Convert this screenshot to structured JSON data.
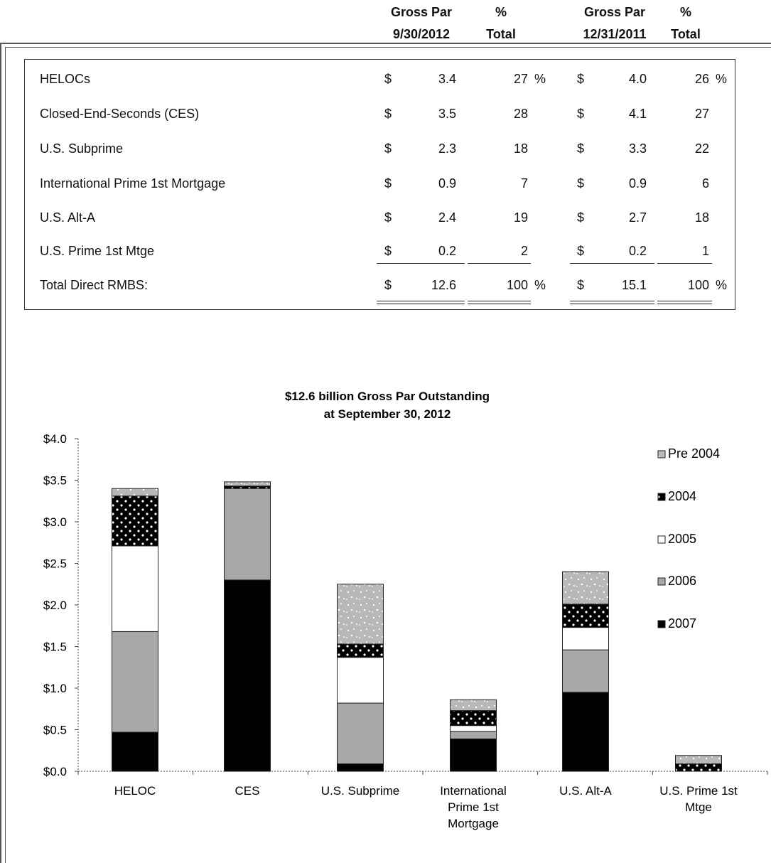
{
  "table": {
    "headers": [
      {
        "line1": "Gross Par",
        "line2": "9/30/2012"
      },
      {
        "line1": "%",
        "line2": "Total"
      },
      {
        "line1": "Gross Par",
        "line2": "12/31/2011"
      },
      {
        "line1": "%",
        "line2": "Total"
      }
    ],
    "rows": [
      {
        "label": "HELOCs",
        "cur1": "$",
        "par1": "3.4",
        "pct1": "27",
        "pctsign1": "%",
        "cur2": "$",
        "par2": "4.0",
        "pct2": "26",
        "pctsign2": "%"
      },
      {
        "label": "Closed-End-Seconds (CES)",
        "cur1": "$",
        "par1": "3.5",
        "pct1": "28",
        "pctsign1": "",
        "cur2": "$",
        "par2": "4.1",
        "pct2": "27",
        "pctsign2": ""
      },
      {
        "label": "U.S. Subprime",
        "cur1": "$",
        "par1": "2.3",
        "pct1": "18",
        "pctsign1": "",
        "cur2": "$",
        "par2": "3.3",
        "pct2": "22",
        "pctsign2": ""
      },
      {
        "label": "International Prime 1st Mortgage",
        "cur1": "$",
        "par1": "0.9",
        "pct1": "7",
        "pctsign1": "",
        "cur2": "$",
        "par2": "0.9",
        "pct2": "6",
        "pctsign2": ""
      },
      {
        "label": "U.S.  Alt-A",
        "cur1": "$",
        "par1": "2.4",
        "pct1": "19",
        "pctsign1": "",
        "cur2": "$",
        "par2": "2.7",
        "pct2": "18",
        "pctsign2": ""
      },
      {
        "label": "U.S. Prime 1st Mtge",
        "cur1": "$",
        "par1": "0.2",
        "pct1": "2",
        "pctsign1": "",
        "cur2": "$",
        "par2": "0.2",
        "pct2": "1",
        "pctsign2": ""
      }
    ],
    "total": {
      "label": "Total Direct RMBS:",
      "cur1": "$",
      "par1": "12.6",
      "pct1": "100",
      "pctsign1": "%",
      "cur2": "$",
      "par2": "15.1",
      "pct2": "100",
      "pctsign2": "%"
    }
  },
  "chart_data": {
    "type": "bar",
    "stacked": true,
    "title": [
      "$12.6 billion Gross Par Outstanding",
      "at September 30, 2012"
    ],
    "categories": [
      [
        "HELOC"
      ],
      [
        "CES"
      ],
      [
        "U.S. Subprime"
      ],
      [
        "International",
        "Prime 1st",
        "Mortgage"
      ],
      [
        "U.S.  Alt-A"
      ],
      [
        "U.S. Prime 1st",
        "Mtge"
      ]
    ],
    "ylim": [
      0,
      4.0
    ],
    "yticks": [
      "$0.0",
      "$0.5",
      "$1.0",
      "$1.5",
      "$2.0",
      "$2.5",
      "$3.0",
      "$3.5",
      "$4.0"
    ],
    "legend_position": "right",
    "series": [
      {
        "name": "2007",
        "color": "#000000",
        "pattern": "solid",
        "values": [
          0.47,
          2.3,
          0.09,
          0.39,
          0.95,
          0.0
        ]
      },
      {
        "name": "2006",
        "color": "#a8a8a8",
        "pattern": "solid",
        "values": [
          1.21,
          1.1,
          0.73,
          0.09,
          0.51,
          0.0
        ]
      },
      {
        "name": "2005",
        "color": "#ffffff",
        "pattern": "solid",
        "values": [
          1.03,
          0.0,
          0.55,
          0.07,
          0.27,
          0.0
        ]
      },
      {
        "name": "2004",
        "color": "#000000",
        "pattern": "dots",
        "values": [
          0.6,
          0.03,
          0.16,
          0.18,
          0.28,
          0.09
        ]
      },
      {
        "name": "Pre 2004",
        "color": "#b8b8b8",
        "pattern": "speckle",
        "values": [
          0.09,
          0.05,
          0.72,
          0.13,
          0.39,
          0.1
        ]
      }
    ],
    "legend_order": [
      "Pre 2004",
      "2004",
      "2005",
      "2006",
      "2007"
    ]
  }
}
